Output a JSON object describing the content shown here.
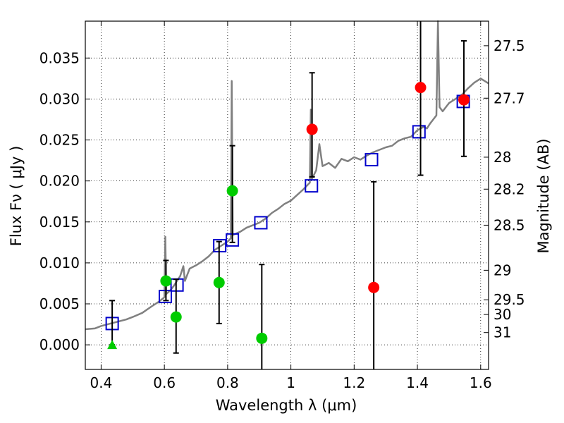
{
  "chart_data": {
    "type": "scatter",
    "title": "",
    "xlabel": "Wavelength  λ (μm)",
    "ylabel": "Flux  Fν  ( μJy )",
    "ylabel_right": "Magnitude (AB)",
    "xlim": [
      0.35,
      1.625
    ],
    "ylim": [
      -0.003,
      0.0395
    ],
    "grid": true,
    "x_ticks": [
      0.4,
      0.6,
      0.8,
      1.0,
      1.2,
      1.4,
      1.6
    ],
    "x_tick_labels": [
      "0.4",
      "0.6",
      "0.8",
      "1",
      "1.2",
      "1.4",
      "1.6"
    ],
    "y_ticks": [
      0.0,
      0.005,
      0.01,
      0.015,
      0.02,
      0.025,
      0.03,
      0.035
    ],
    "y_tick_labels": [
      "0.000",
      "0.005",
      "0.010",
      "0.015",
      "0.020",
      "0.025",
      "0.030",
      "0.035"
    ],
    "right_ticks": [
      {
        "flux": 0.0365,
        "label": "27.5"
      },
      {
        "flux": 0.0301,
        "label": "27.7"
      },
      {
        "flux": 0.0229,
        "label": "28"
      },
      {
        "flux": 0.019,
        "label": "28.2"
      },
      {
        "flux": 0.0146,
        "label": "28.5"
      },
      {
        "flux": 0.0091,
        "label": "29"
      },
      {
        "flux": 0.0055,
        "label": "29.5"
      },
      {
        "flux": 0.0037,
        "label": "30"
      },
      {
        "flux": 0.0015,
        "label": "31"
      }
    ],
    "series": [
      {
        "kind": "line",
        "color": "#808080",
        "points": [
          [
            0.35,
            0.0019
          ],
          [
            0.38,
            0.002
          ],
          [
            0.4,
            0.0023
          ],
          [
            0.42,
            0.0025
          ],
          [
            0.45,
            0.0028
          ],
          [
            0.48,
            0.0031
          ],
          [
            0.5,
            0.0034
          ],
          [
            0.53,
            0.0039
          ],
          [
            0.56,
            0.0047
          ],
          [
            0.58,
            0.0052
          ],
          [
            0.6,
            0.0058
          ],
          [
            0.603,
            0.0132
          ],
          [
            0.606,
            0.0062
          ],
          [
            0.62,
            0.0067
          ],
          [
            0.63,
            0.0072
          ],
          [
            0.64,
            0.0078
          ],
          [
            0.65,
            0.0084
          ],
          [
            0.66,
            0.0096
          ],
          [
            0.665,
            0.0078
          ],
          [
            0.68,
            0.0093
          ],
          [
            0.7,
            0.0097
          ],
          [
            0.72,
            0.0102
          ],
          [
            0.74,
            0.0108
          ],
          [
            0.76,
            0.0116
          ],
          [
            0.78,
            0.0121
          ],
          [
            0.8,
            0.0126
          ],
          [
            0.81,
            0.013
          ],
          [
            0.813,
            0.0322
          ],
          [
            0.816,
            0.0134
          ],
          [
            0.84,
            0.0138
          ],
          [
            0.86,
            0.0143
          ],
          [
            0.88,
            0.0146
          ],
          [
            0.9,
            0.0149
          ],
          [
            0.92,
            0.0154
          ],
          [
            0.94,
            0.0161
          ],
          [
            0.96,
            0.0166
          ],
          [
            0.98,
            0.0172
          ],
          [
            1.0,
            0.0176
          ],
          [
            1.02,
            0.0183
          ],
          [
            1.04,
            0.019
          ],
          [
            1.06,
            0.0198
          ],
          [
            1.063,
            0.0287
          ],
          [
            1.066,
            0.0202
          ],
          [
            1.08,
            0.0213
          ],
          [
            1.09,
            0.0245
          ],
          [
            1.1,
            0.0218
          ],
          [
            1.12,
            0.0222
          ],
          [
            1.14,
            0.0216
          ],
          [
            1.16,
            0.0227
          ],
          [
            1.18,
            0.0224
          ],
          [
            1.2,
            0.0229
          ],
          [
            1.22,
            0.0226
          ],
          [
            1.24,
            0.0231
          ],
          [
            1.26,
            0.0235
          ],
          [
            1.28,
            0.0238
          ],
          [
            1.3,
            0.0241
          ],
          [
            1.32,
            0.0243
          ],
          [
            1.34,
            0.0249
          ],
          [
            1.36,
            0.0252
          ],
          [
            1.38,
            0.0254
          ],
          [
            1.4,
            0.0262
          ],
          [
            1.42,
            0.0266
          ],
          [
            1.43,
            0.0264
          ],
          [
            1.44,
            0.027
          ],
          [
            1.45,
            0.0275
          ],
          [
            1.46,
            0.028
          ],
          [
            1.465,
            0.0395
          ],
          [
            1.47,
            0.029
          ],
          [
            1.48,
            0.0285
          ],
          [
            1.5,
            0.0295
          ],
          [
            1.52,
            0.03
          ],
          [
            1.54,
            0.0305
          ],
          [
            1.56,
            0.0313
          ],
          [
            1.58,
            0.032
          ],
          [
            1.6,
            0.0325
          ],
          [
            1.625,
            0.0319
          ]
        ]
      },
      {
        "kind": "squares",
        "color": "#0000cc",
        "points": [
          [
            0.435,
            0.0026
          ],
          [
            0.603,
            0.0059
          ],
          [
            0.64,
            0.0073
          ],
          [
            0.775,
            0.0121
          ],
          [
            0.815,
            0.0128
          ],
          [
            0.905,
            0.0149
          ],
          [
            1.065,
            0.0194
          ],
          [
            1.255,
            0.0226
          ],
          [
            1.405,
            0.026
          ],
          [
            1.545,
            0.0297
          ]
        ]
      },
      {
        "kind": "errorbars",
        "color": "#000000",
        "points": [
          {
            "x": 0.435,
            "lo": 0.0,
            "hi": 0.0054
          },
          {
            "x": 0.605,
            "lo": 0.0054,
            "hi": 0.0103
          },
          {
            "x": 0.637,
            "lo": -0.001,
            "hi": 0.008
          },
          {
            "x": 0.773,
            "lo": 0.0026,
            "hi": 0.0126
          },
          {
            "x": 0.815,
            "lo": 0.0125,
            "hi": 0.0243
          },
          {
            "x": 0.908,
            "lo": -0.003,
            "hi": 0.0098
          },
          {
            "x": 1.067,
            "lo": 0.0205,
            "hi": 0.0332
          },
          {
            "x": 1.262,
            "lo": -0.003,
            "hi": 0.0199
          },
          {
            "x": 1.41,
            "lo": 0.0207,
            "hi": 0.0395
          },
          {
            "x": 1.547,
            "lo": 0.023,
            "hi": 0.0371
          }
        ]
      },
      {
        "kind": "circles",
        "color": "#00cc00",
        "points": [
          [
            0.605,
            0.0078
          ],
          [
            0.637,
            0.0034
          ],
          [
            0.773,
            0.0076
          ],
          [
            0.815,
            0.0188
          ],
          [
            0.908,
            0.0008
          ]
        ]
      },
      {
        "kind": "circles",
        "color": "#ff0000",
        "points": [
          [
            1.067,
            0.0263
          ],
          [
            1.262,
            0.007
          ],
          [
            1.41,
            0.0314
          ],
          [
            1.547,
            0.0299
          ]
        ]
      },
      {
        "kind": "triangles",
        "color": "#00cc00",
        "points": [
          [
            0.435,
            0.0
          ]
        ]
      }
    ]
  }
}
